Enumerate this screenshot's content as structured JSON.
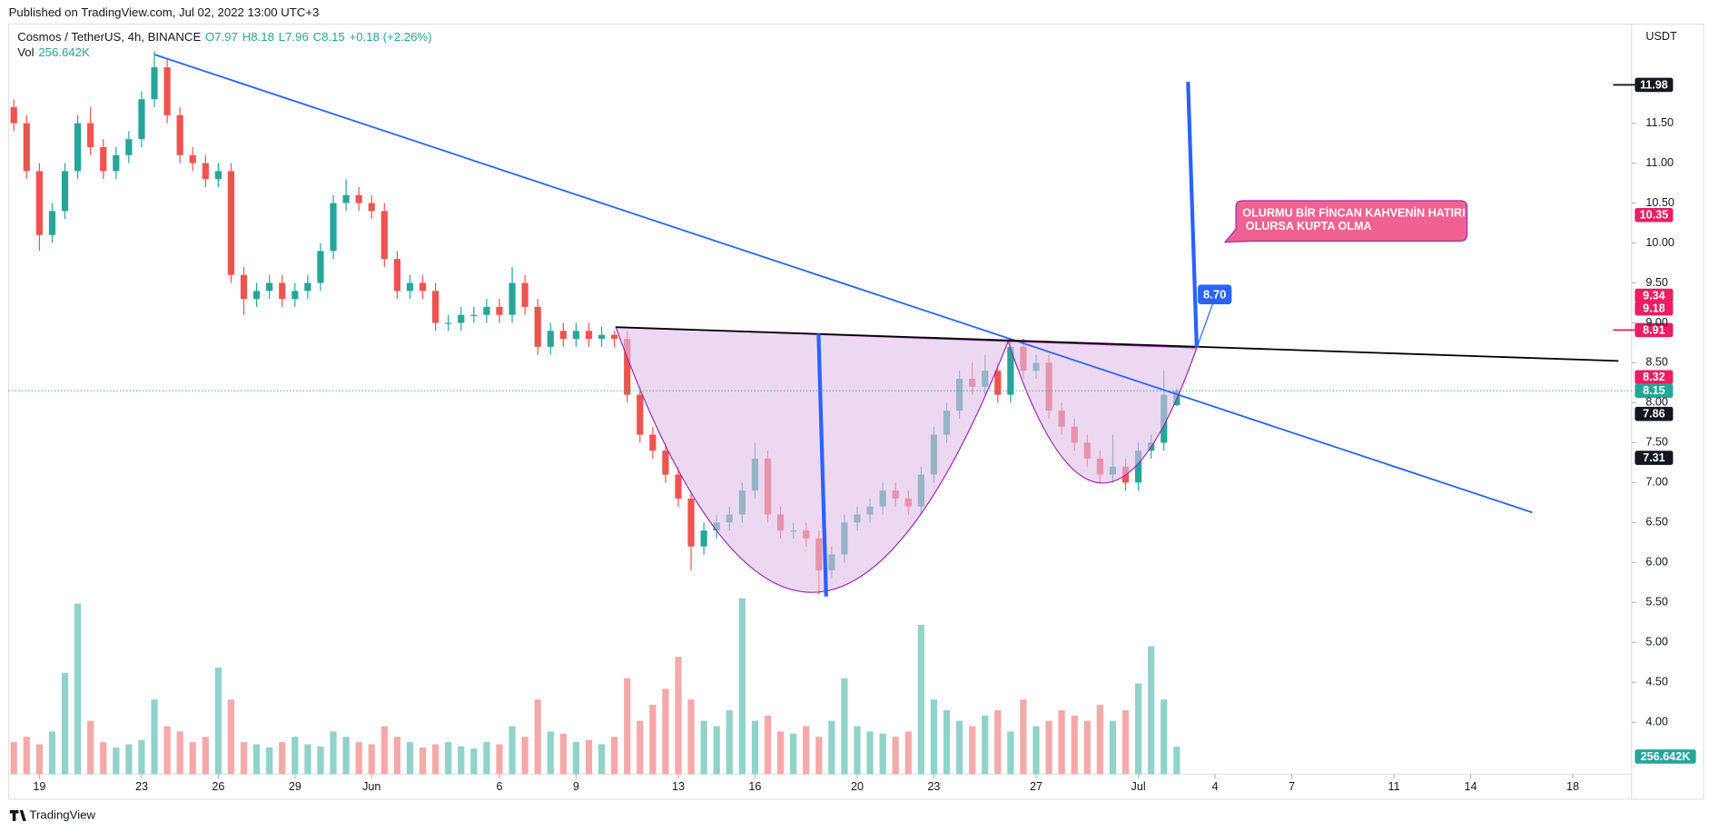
{
  "header": {
    "published": "Published on TradingView.com, Jul 02, 2022 13:00 UTC+3",
    "brand": "TradingView"
  },
  "chart_data": {
    "type": "candlestick",
    "symbol": "Cosmos / TetherUS, 4h, BINANCE",
    "ohlc_legend": [
      "O7.97",
      "H8.18",
      "L7.96",
      "C8.15",
      "+0.18 (+2.26%)"
    ],
    "volume_name": "Vol",
    "volume_value_label": "256.642K",
    "currency": "USDT",
    "up_color": "#26a69a",
    "down_color": "#ef5350",
    "vol_up_color": "#8fd3cb",
    "vol_down_color": "#f5a9a8",
    "x": [
      -1,
      -0.5,
      0,
      0.5,
      1,
      1.5,
      2,
      2.5,
      3,
      3.5,
      4,
      4.5,
      5,
      5.5,
      6,
      6.5,
      7,
      7.5,
      8,
      8.5,
      9,
      9.5,
      10,
      10.5,
      11,
      11.5,
      12,
      12.5,
      13,
      13.5,
      14,
      14.5,
      15,
      15.5,
      16,
      16.5,
      17,
      17.5,
      18,
      18.5,
      19,
      19.5,
      20,
      20.5,
      21,
      21.5,
      22,
      22.5,
      23,
      23.5,
      24,
      24.5,
      25,
      25.5,
      26,
      26.5,
      27,
      27.5,
      28,
      28.5,
      29,
      29.5,
      30,
      30.5,
      31,
      31.5,
      32,
      32.5,
      33,
      33.5,
      34,
      34.5,
      35,
      35.5,
      36,
      36.5,
      37,
      37.5,
      38,
      38.5,
      39,
      39.5,
      40,
      40.5,
      41,
      41.5,
      42,
      42.5,
      43,
      43.5,
      44,
      44.5
    ],
    "ohlc": [
      [
        11.7,
        11.8,
        11.4,
        11.5
      ],
      [
        11.5,
        11.6,
        10.8,
        10.9
      ],
      [
        10.9,
        11.0,
        9.9,
        10.1
      ],
      [
        10.1,
        10.5,
        10.0,
        10.4
      ],
      [
        10.4,
        11.0,
        10.3,
        10.9
      ],
      [
        10.9,
        11.6,
        10.8,
        11.5
      ],
      [
        11.5,
        11.7,
        11.1,
        11.2
      ],
      [
        11.2,
        11.3,
        10.8,
        10.9
      ],
      [
        10.9,
        11.2,
        10.8,
        11.1
      ],
      [
        11.1,
        11.4,
        11.0,
        11.3
      ],
      [
        11.3,
        11.9,
        11.2,
        11.8
      ],
      [
        11.8,
        12.4,
        11.7,
        12.2
      ],
      [
        12.2,
        12.3,
        11.5,
        11.6
      ],
      [
        11.6,
        11.7,
        11.0,
        11.1
      ],
      [
        11.1,
        11.2,
        10.9,
        11.0
      ],
      [
        11.0,
        11.1,
        10.7,
        10.8
      ],
      [
        10.8,
        11.0,
        10.7,
        10.9
      ],
      [
        10.9,
        11.0,
        9.5,
        9.6
      ],
      [
        9.6,
        9.7,
        9.1,
        9.3
      ],
      [
        9.3,
        9.5,
        9.2,
        9.4
      ],
      [
        9.4,
        9.6,
        9.3,
        9.5
      ],
      [
        9.5,
        9.6,
        9.2,
        9.3
      ],
      [
        9.3,
        9.5,
        9.2,
        9.4
      ],
      [
        9.4,
        9.6,
        9.3,
        9.5
      ],
      [
        9.5,
        10.0,
        9.4,
        9.9
      ],
      [
        9.9,
        10.6,
        9.8,
        10.5
      ],
      [
        10.5,
        10.8,
        10.4,
        10.6
      ],
      [
        10.6,
        10.7,
        10.4,
        10.5
      ],
      [
        10.5,
        10.6,
        10.3,
        10.4
      ],
      [
        10.4,
        10.5,
        9.7,
        9.8
      ],
      [
        9.8,
        9.9,
        9.3,
        9.4
      ],
      [
        9.4,
        9.6,
        9.3,
        9.5
      ],
      [
        9.5,
        9.6,
        9.3,
        9.4
      ],
      [
        9.4,
        9.5,
        8.9,
        9.0
      ],
      [
        9.0,
        9.1,
        8.9,
        9.0
      ],
      [
        9.0,
        9.2,
        8.9,
        9.1
      ],
      [
        9.1,
        9.2,
        9.0,
        9.1
      ],
      [
        9.1,
        9.3,
        9.0,
        9.2
      ],
      [
        9.2,
        9.3,
        9.0,
        9.1
      ],
      [
        9.1,
        9.7,
        9.0,
        9.5
      ],
      [
        9.5,
        9.6,
        9.1,
        9.2
      ],
      [
        9.2,
        9.3,
        8.6,
        8.7
      ],
      [
        8.7,
        9.0,
        8.6,
        8.9
      ],
      [
        8.9,
        9.0,
        8.7,
        8.8
      ],
      [
        8.8,
        9.0,
        8.7,
        8.9
      ],
      [
        8.9,
        9.0,
        8.7,
        8.8
      ],
      [
        8.8,
        8.95,
        8.7,
        8.85
      ],
      [
        8.85,
        8.9,
        8.7,
        8.8
      ],
      [
        8.8,
        8.9,
        8.0,
        8.1
      ],
      [
        8.1,
        8.2,
        7.5,
        7.6
      ],
      [
        7.6,
        7.7,
        7.3,
        7.4
      ],
      [
        7.4,
        7.5,
        7.0,
        7.1
      ],
      [
        7.1,
        7.2,
        6.7,
        6.8
      ],
      [
        6.8,
        6.9,
        5.9,
        6.2
      ],
      [
        6.2,
        6.5,
        6.1,
        6.4
      ],
      [
        6.4,
        6.6,
        6.3,
        6.5
      ],
      [
        6.5,
        6.7,
        6.4,
        6.6
      ],
      [
        6.6,
        7.0,
        6.5,
        6.9
      ],
      [
        6.9,
        7.5,
        6.8,
        7.3
      ],
      [
        7.3,
        7.4,
        6.5,
        6.6
      ],
      [
        6.6,
        6.7,
        6.3,
        6.4
      ],
      [
        6.4,
        6.5,
        6.3,
        6.4
      ],
      [
        6.4,
        6.5,
        6.2,
        6.3
      ],
      [
        6.3,
        6.4,
        5.6,
        5.9
      ],
      [
        5.9,
        6.2,
        5.8,
        6.1
      ],
      [
        6.1,
        6.6,
        6.0,
        6.5
      ],
      [
        6.5,
        6.7,
        6.4,
        6.6
      ],
      [
        6.6,
        6.8,
        6.5,
        6.7
      ],
      [
        6.7,
        7.0,
        6.6,
        6.9
      ],
      [
        6.9,
        7.0,
        6.7,
        6.8
      ],
      [
        6.8,
        6.9,
        6.6,
        6.7
      ],
      [
        6.7,
        7.2,
        6.6,
        7.1
      ],
      [
        7.1,
        7.7,
        7.0,
        7.6
      ],
      [
        7.6,
        8.0,
        7.5,
        7.9
      ],
      [
        7.9,
        8.4,
        7.8,
        8.3
      ],
      [
        8.3,
        8.5,
        8.1,
        8.2
      ],
      [
        8.2,
        8.6,
        8.1,
        8.4
      ],
      [
        8.4,
        8.5,
        8.0,
        8.1
      ],
      [
        8.1,
        8.8,
        8.0,
        8.7
      ],
      [
        8.7,
        8.8,
        8.3,
        8.4
      ],
      [
        8.4,
        8.6,
        8.3,
        8.5
      ],
      [
        8.5,
        8.6,
        7.8,
        7.9
      ],
      [
        7.9,
        8.0,
        7.6,
        7.7
      ],
      [
        7.7,
        7.8,
        7.4,
        7.5
      ],
      [
        7.5,
        7.6,
        7.2,
        7.3
      ],
      [
        7.3,
        7.4,
        7.0,
        7.1
      ],
      [
        7.1,
        7.6,
        7.0,
        7.2
      ],
      [
        7.2,
        7.3,
        6.9,
        7.0
      ],
      [
        7.0,
        7.5,
        6.9,
        7.4
      ],
      [
        7.4,
        7.6,
        7.3,
        7.5
      ],
      [
        7.5,
        8.4,
        7.4,
        8.1
      ],
      [
        7.97,
        8.18,
        7.96,
        8.15
      ]
    ],
    "volume": [
      300000,
      350000,
      280000,
      400000,
      950000,
      1600000,
      500000,
      300000,
      250000,
      280000,
      320000,
      700000,
      450000,
      400000,
      300000,
      350000,
      1000000,
      700000,
      300000,
      280000,
      250000,
      300000,
      350000,
      280000,
      260000,
      400000,
      350000,
      300000,
      280000,
      450000,
      350000,
      300000,
      250000,
      280000,
      300000,
      260000,
      240000,
      300000,
      280000,
      450000,
      350000,
      700000,
      400000,
      380000,
      300000,
      320000,
      280000,
      350000,
      900000,
      500000,
      650000,
      800000,
      1100000,
      700000,
      500000,
      450000,
      600000,
      1650000,
      500000,
      550000,
      400000,
      380000,
      450000,
      350000,
      500000,
      900000,
      450000,
      400000,
      380000,
      350000,
      400000,
      1400000,
      700000,
      600000,
      500000,
      450000,
      550000,
      600000,
      400000,
      700000,
      450000,
      500000,
      600000,
      550000,
      500000,
      650000,
      500000,
      600000,
      850000,
      1200000,
      700000,
      256642
    ],
    "volume_lim": [
      0,
      1800000
    ],
    "xlim": [
      -1.2,
      62.3
    ],
    "xticks": [
      {
        "value": 0,
        "label": "19"
      },
      {
        "value": 4,
        "label": "23"
      },
      {
        "value": 7,
        "label": "26"
      },
      {
        "value": 10,
        "label": "29"
      },
      {
        "value": 13,
        "label": "Jun"
      },
      {
        "value": 18,
        "label": "6"
      },
      {
        "value": 21,
        "label": "9"
      },
      {
        "value": 25,
        "label": "13"
      },
      {
        "value": 28,
        "label": "16"
      },
      {
        "value": 32,
        "label": "20"
      },
      {
        "value": 35,
        "label": "23"
      },
      {
        "value": 39,
        "label": "27"
      },
      {
        "value": 43,
        "label": "Jul"
      },
      {
        "value": 46,
        "label": "4"
      },
      {
        "value": 49,
        "label": "7"
      },
      {
        "value": 53,
        "label": "11"
      },
      {
        "value": 56,
        "label": "14"
      },
      {
        "value": 60,
        "label": "18"
      }
    ],
    "ylim": [
      3.35,
      12.7
    ],
    "yticks": [
      {
        "value": 4,
        "label": "4.00"
      },
      {
        "value": 4.5,
        "label": "4.50"
      },
      {
        "value": 5,
        "label": "5.00"
      },
      {
        "value": 5.5,
        "label": "5.50"
      },
      {
        "value": 6,
        "label": "6.00"
      },
      {
        "value": 6.5,
        "label": "6.50"
      },
      {
        "value": 7,
        "label": "7.00"
      },
      {
        "value": 7.5,
        "label": "7.50"
      },
      {
        "value": 8,
        "label": "8.00"
      },
      {
        "value": 8.5,
        "label": "8.50"
      },
      {
        "value": 9,
        "label": "9.00"
      },
      {
        "value": 9.5,
        "label": "9.50"
      },
      {
        "value": 10,
        "label": "10.00"
      },
      {
        "value": 10.5,
        "label": "10.50"
      },
      {
        "value": 11,
        "label": "11.00"
      },
      {
        "value": 11.5,
        "label": "11.50"
      }
    ],
    "price_labels": [
      {
        "value": 11.98,
        "color": "#131722"
      },
      {
        "value": 10.35,
        "color": "#e91e63"
      },
      {
        "value": 9.34,
        "color": "#e91e63"
      },
      {
        "value": 9.18,
        "color": "#e91e63"
      },
      {
        "value": 8.91,
        "color": "#e91e63"
      },
      {
        "value": 8.32,
        "color": "#e91e63"
      },
      {
        "value": 8.15,
        "color": "#26a69a"
      },
      {
        "value": 7.86,
        "color": "#131722"
      },
      {
        "value": 7.31,
        "color": "#131722"
      }
    ],
    "current_price": 8.15,
    "target_label": {
      "value": 8.7,
      "label": "8.70"
    },
    "annotation": {
      "lines": [
        "OLURMU BİR FİNCAN KAHVENİN HATIRI",
        " OLURSA KUPTA OLMA"
      ]
    }
  }
}
